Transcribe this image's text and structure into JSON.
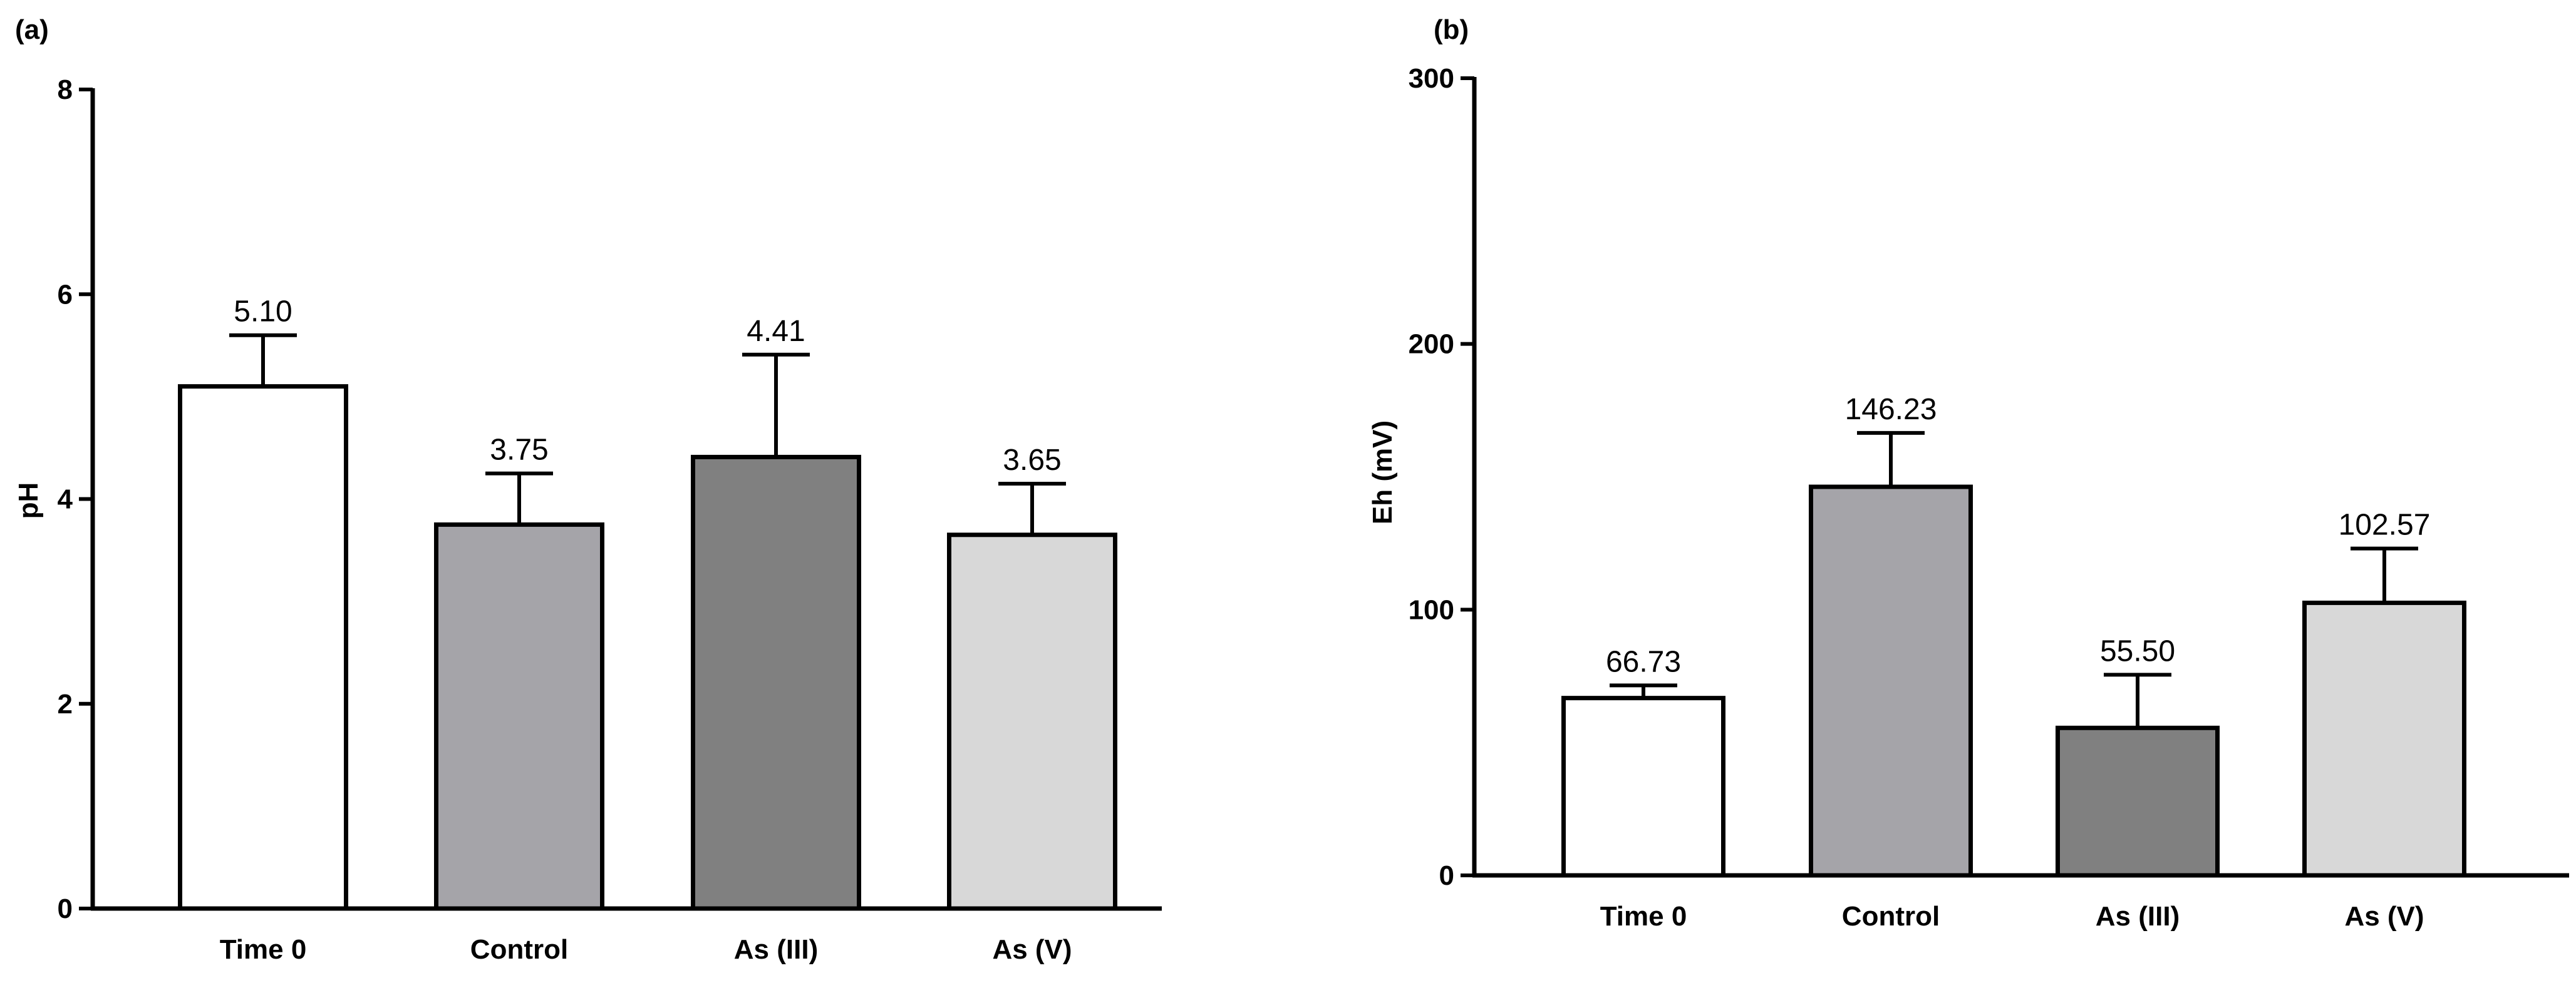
{
  "chart_data": [
    {
      "panel": "(a)",
      "type": "bar",
      "categories": [
        "Time 0",
        "Control",
        "As (III)",
        "As (V)"
      ],
      "values": [
        5.1,
        3.75,
        4.41,
        3.65
      ],
      "value_labels": [
        "5.10",
        "3.75",
        "4.41",
        "3.65"
      ],
      "error_upper": [
        5.6,
        4.25,
        5.41,
        4.15
      ],
      "colors": [
        "#ffffff",
        "#a5a4a9",
        "#808080",
        "#d8d8d8"
      ],
      "xlabel": "",
      "ylabel": "pH",
      "ylim": [
        0,
        8
      ],
      "yticks": [
        0,
        2,
        4,
        6,
        8
      ],
      "ytick_labels": [
        "0",
        "2",
        "4",
        "6",
        "8"
      ],
      "grid": false
    },
    {
      "panel": "(b)",
      "type": "bar",
      "categories": [
        "Time 0",
        "Control",
        "As (III)",
        "As (V)"
      ],
      "values": [
        66.73,
        146.23,
        55.5,
        102.57
      ],
      "value_labels": [
        "66.73",
        "146.23",
        "55.50",
        "102.57"
      ],
      "error_upper": [
        71.5,
        166.5,
        75.5,
        123.0
      ],
      "colors": [
        "#ffffff",
        "#a5a4a9",
        "#808080",
        "#d8d8d8"
      ],
      "xlabel": "",
      "ylabel": "Eh (mV)",
      "ylim": [
        0,
        300
      ],
      "yticks": [
        0,
        100,
        200,
        300
      ],
      "ytick_labels": [
        "0",
        "100",
        "200",
        "300"
      ],
      "grid": false
    }
  ]
}
